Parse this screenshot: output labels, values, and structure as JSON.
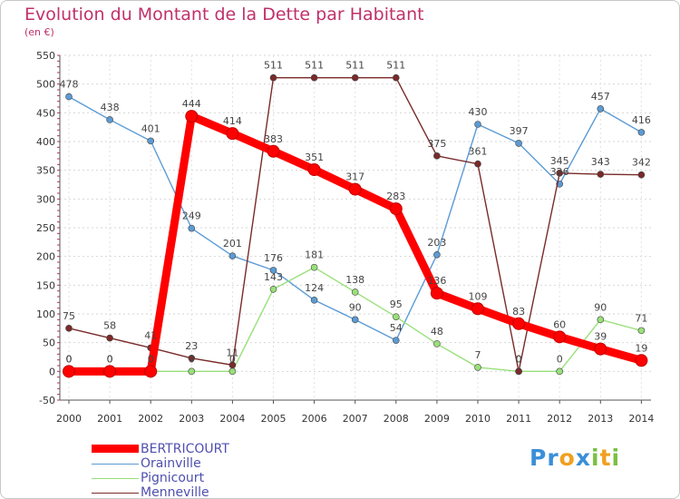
{
  "title": "Evolution du Montant de la Dette par Habitant",
  "unit": "(en €)",
  "brand": "Proxiti",
  "chart_data": {
    "type": "line",
    "x": [
      "2000",
      "2001",
      "2002",
      "2003",
      "2004",
      "2005",
      "2006",
      "2007",
      "2008",
      "2009",
      "2010",
      "2011",
      "2012",
      "2013",
      "2014"
    ],
    "ylim": [
      -50,
      550
    ],
    "yticks": [
      -50,
      0,
      50,
      100,
      150,
      200,
      250,
      300,
      350,
      400,
      450,
      500,
      550
    ],
    "grid": true,
    "legend_position": "bottom-left",
    "series": [
      {
        "name": "BERTRICOURT",
        "color": "#ff0000",
        "values": [
          0,
          0,
          0,
          444,
          414,
          383,
          351,
          317,
          283,
          136,
          109,
          83,
          60,
          39,
          19
        ]
      },
      {
        "name": "Orainville",
        "color": "#5b9bd5",
        "values": [
          478,
          438,
          401,
          249,
          201,
          176,
          124,
          90,
          54,
          203,
          430,
          397,
          326,
          457,
          416
        ]
      },
      {
        "name": "Pignicourt",
        "color": "#99e07a",
        "values": [
          0,
          0,
          0,
          0,
          0,
          143,
          181,
          138,
          95,
          48,
          7,
          0,
          0,
          90,
          71
        ]
      },
      {
        "name": "Menneville",
        "color": "#7a2a2a",
        "values": [
          75,
          58,
          41,
          23,
          11,
          511,
          511,
          511,
          511,
          375,
          361,
          0,
          345,
          343,
          342
        ]
      }
    ]
  }
}
